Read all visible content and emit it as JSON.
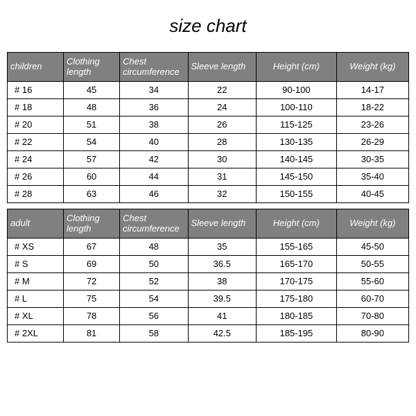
{
  "title": "size chart",
  "colors": {
    "header_bg": "#808080",
    "header_fg": "#ffffff",
    "cell_bg": "#ffffff",
    "cell_fg": "#000000",
    "border": "#000000",
    "page_bg": "#ffffff"
  },
  "typography": {
    "title_fontsize_pt": 20,
    "title_style": "italic",
    "header_fontsize_pt": 10,
    "header_style": "italic",
    "cell_fontsize_pt": 10,
    "font_family": "Comic Sans MS"
  },
  "tables": [
    {
      "type": "table",
      "columns": [
        {
          "key": "size",
          "label": "children",
          "align": "left",
          "width_pct": 14
        },
        {
          "key": "c_len",
          "label": "Clothing length",
          "align": "left",
          "width_pct": 14
        },
        {
          "key": "chest",
          "label": "Chest circumference",
          "align": "left",
          "width_pct": 17
        },
        {
          "key": "sleeve",
          "label": "Sleeve length",
          "align": "left",
          "width_pct": 17
        },
        {
          "key": "height",
          "label": "Height (cm)",
          "align": "center",
          "width_pct": 20
        },
        {
          "key": "weight",
          "label": "Weight (kg)",
          "align": "center",
          "width_pct": 18
        }
      ],
      "rows": [
        {
          "size": "# 16",
          "c_len": "45",
          "chest": "34",
          "sleeve": "22",
          "height": "90-100",
          "weight": "14-17"
        },
        {
          "size": "# 18",
          "c_len": "48",
          "chest": "36",
          "sleeve": "24",
          "height": "100-110",
          "weight": "18-22"
        },
        {
          "size": "# 20",
          "c_len": "51",
          "chest": "38",
          "sleeve": "26",
          "height": "115-125",
          "weight": "23-26"
        },
        {
          "size": "# 22",
          "c_len": "54",
          "chest": "40",
          "sleeve": "28",
          "height": "130-135",
          "weight": "26-29"
        },
        {
          "size": "# 24",
          "c_len": "57",
          "chest": "42",
          "sleeve": "30",
          "height": "140-145",
          "weight": "30-35"
        },
        {
          "size": "# 26",
          "c_len": "60",
          "chest": "44",
          "sleeve": "31",
          "height": "145-150",
          "weight": "35-40"
        },
        {
          "size": "# 28",
          "c_len": "63",
          "chest": "46",
          "sleeve": "32",
          "height": "150-155",
          "weight": "40-45"
        }
      ]
    },
    {
      "type": "table",
      "columns": [
        {
          "key": "size",
          "label": "adult",
          "align": "left",
          "width_pct": 14
        },
        {
          "key": "c_len",
          "label": "Clothing length",
          "align": "left",
          "width_pct": 14
        },
        {
          "key": "chest",
          "label": "Chest circumference",
          "align": "left",
          "width_pct": 17
        },
        {
          "key": "sleeve",
          "label": "Sleeve length",
          "align": "left",
          "width_pct": 17
        },
        {
          "key": "height",
          "label": "Height (cm)",
          "align": "center",
          "width_pct": 20
        },
        {
          "key": "weight",
          "label": "Weight (kg)",
          "align": "center",
          "width_pct": 18
        }
      ],
      "rows": [
        {
          "size": "# XS",
          "c_len": "67",
          "chest": "48",
          "sleeve": "35",
          "height": "155-165",
          "weight": "45-50"
        },
        {
          "size": "# S",
          "c_len": "69",
          "chest": "50",
          "sleeve": "36.5",
          "height": "165-170",
          "weight": "50-55"
        },
        {
          "size": "# M",
          "c_len": "72",
          "chest": "52",
          "sleeve": "38",
          "height": "170-175",
          "weight": "55-60"
        },
        {
          "size": "# L",
          "c_len": "75",
          "chest": "54",
          "sleeve": "39.5",
          "height": "175-180",
          "weight": "60-70"
        },
        {
          "size": "# XL",
          "c_len": "78",
          "chest": "56",
          "sleeve": "41",
          "height": "180-185",
          "weight": "70-80"
        },
        {
          "size": "# 2XL",
          "c_len": "81",
          "chest": "58",
          "sleeve": "42.5",
          "height": "185-195",
          "weight": "80-90"
        }
      ]
    }
  ]
}
